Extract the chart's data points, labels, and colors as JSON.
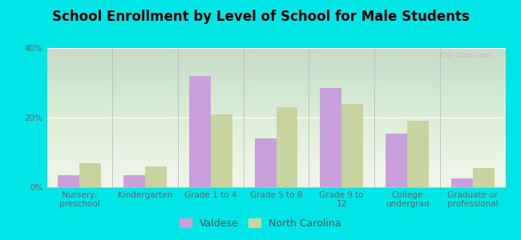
{
  "title": "School Enrollment by Level of School for Male Students",
  "categories": [
    "Nursery,\npreschool",
    "Kindergarten",
    "Grade 1 to 4",
    "Grade 5 to 8",
    "Grade 9 to\n12",
    "College\nundergrad",
    "Graduate or\nprofessional"
  ],
  "valdese": [
    3.5,
    3.5,
    32.0,
    14.0,
    28.5,
    15.5,
    2.5
  ],
  "north_carolina": [
    7.0,
    6.0,
    21.0,
    23.0,
    24.0,
    19.0,
    5.5
  ],
  "valdese_color": "#c9a0dc",
  "nc_color": "#c8d4a0",
  "background_color": "#00e5e5",
  "plot_bg_color": "#eef5e8",
  "ylim": [
    0,
    40
  ],
  "yticks": [
    0,
    20,
    40
  ],
  "ytick_labels": [
    "0%",
    "20%",
    "40%"
  ],
  "legend_valdese": "Valdese",
  "legend_nc": "North Carolina",
  "title_fontsize": 12,
  "tick_fontsize": 7.5,
  "legend_fontsize": 9,
  "bar_width": 0.33
}
